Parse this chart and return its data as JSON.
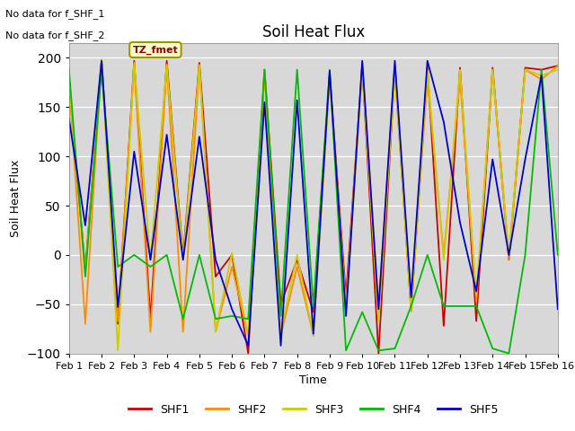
{
  "title": "Soil Heat Flux",
  "ylabel": "Soil Heat Flux",
  "xlabel": "Time",
  "ylim": [
    -100,
    215
  ],
  "yticks": [
    -100,
    -50,
    0,
    50,
    100,
    150,
    200
  ],
  "annotation_line1": "No data for f_SHF_1",
  "annotation_line2": "No data for f_SHF_2",
  "legend_label": "TZ_fmet",
  "series_labels": [
    "SHF1",
    "SHF2",
    "SHF3",
    "SHF4",
    "SHF5"
  ],
  "colors": [
    "#cc0000",
    "#ff8c00",
    "#cccc00",
    "#00bb00",
    "#0000cc"
  ],
  "xtick_labels": [
    "Feb 1",
    "Feb 2",
    "Feb 3",
    "Feb 4",
    "Feb 5",
    "Feb 6",
    "Feb 7",
    "Feb 8",
    "Feb 9",
    "Feb 10",
    "Feb 11",
    "Feb 12",
    "Feb 13",
    "Feb 14",
    "Feb 15",
    "Feb 16"
  ],
  "plot_bg": "#d8d8d8",
  "fig_bg": "#ffffff",
  "x": [
    1,
    1.5,
    2,
    2.5,
    3,
    3.5,
    4,
    4.5,
    5,
    5.5,
    6,
    6.5,
    7,
    7.5,
    8,
    8.5,
    9,
    9.5,
    10,
    10.5,
    11,
    11.5,
    12,
    12.5,
    13,
    13.5,
    14,
    14.5,
    15,
    15.5,
    16
  ],
  "SHF1": [
    175,
    -15,
    198,
    -70,
    197,
    -65,
    197,
    -2,
    195,
    -22,
    0,
    -100,
    188,
    -50,
    -5,
    -58,
    182,
    -42,
    192,
    -100,
    190,
    -57,
    190,
    -72,
    190,
    -67,
    190,
    -5,
    190,
    188,
    192
  ],
  "SHF2": [
    175,
    -70,
    198,
    -67,
    193,
    -78,
    193,
    -78,
    193,
    -78,
    -12,
    -82,
    183,
    -82,
    -12,
    -82,
    183,
    -52,
    195,
    -52,
    192,
    -52,
    178,
    0,
    178,
    -47,
    188,
    -5,
    188,
    178,
    192
  ],
  "SHF3": [
    175,
    -18,
    198,
    -97,
    195,
    -5,
    193,
    -5,
    192,
    -78,
    2,
    -82,
    188,
    -78,
    0,
    -82,
    178,
    -57,
    188,
    -68,
    183,
    -57,
    188,
    -5,
    188,
    -42,
    188,
    0,
    188,
    182,
    188
  ],
  "SHF4": [
    188,
    -22,
    188,
    -12,
    0,
    -12,
    0,
    -65,
    0,
    -65,
    -62,
    -65,
    188,
    -62,
    188,
    -52,
    188,
    -97,
    -58,
    -97,
    -95,
    -52,
    0,
    -52,
    -52,
    -52,
    -95,
    -100,
    0,
    188,
    0
  ],
  "SHF5": [
    138,
    30,
    197,
    -53,
    105,
    -5,
    122,
    -5,
    120,
    -5,
    -55,
    -92,
    155,
    -92,
    157,
    -80,
    187,
    -62,
    197,
    -55,
    197,
    -43,
    197,
    135,
    33,
    -37,
    97,
    0,
    97,
    182,
    -55
  ]
}
